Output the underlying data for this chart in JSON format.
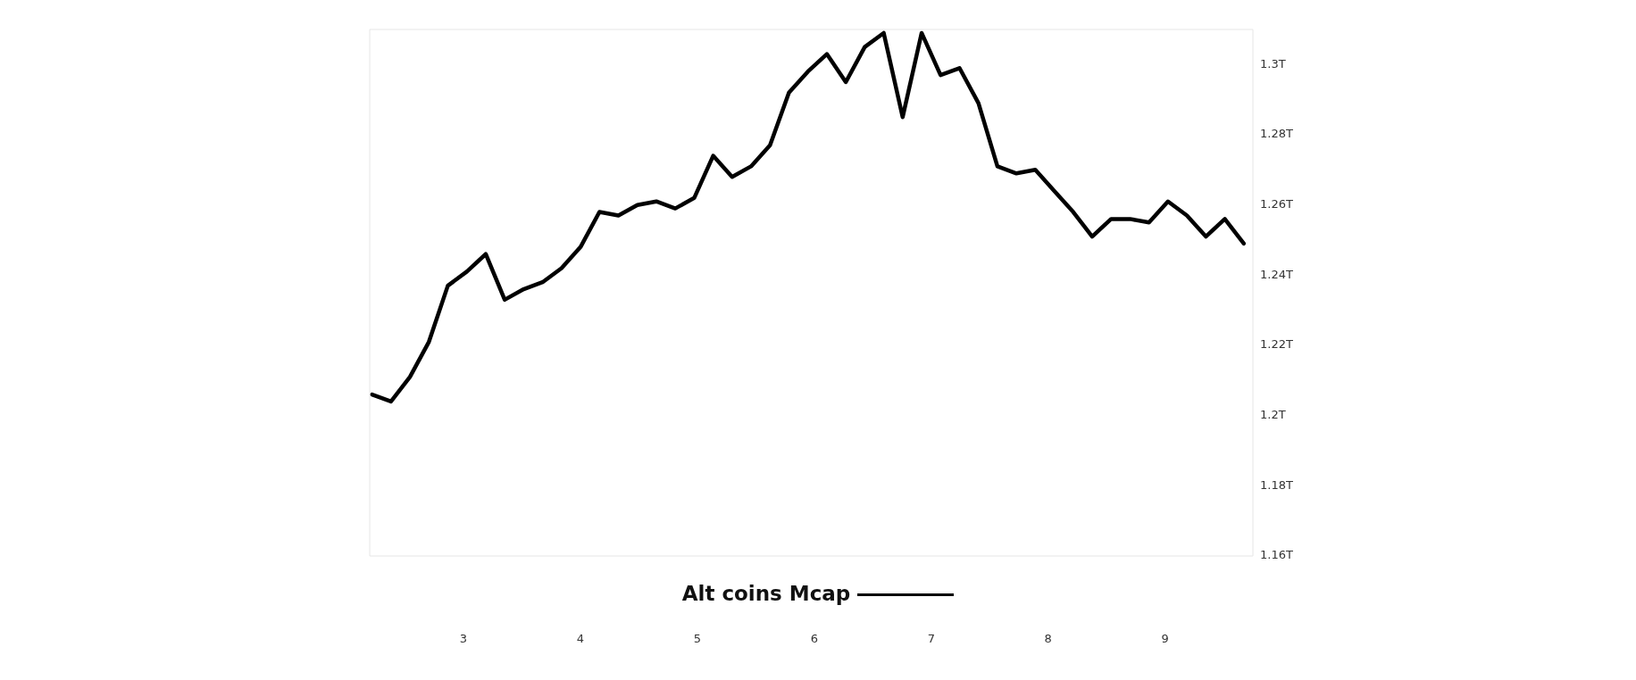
{
  "chart_data": {
    "type": "line",
    "legend": "bottom",
    "grid": false,
    "marker": "none",
    "line_style": "solid",
    "xlim": [
      2.2,
      9.75
    ],
    "xticks": [
      3,
      4,
      5,
      6,
      7,
      8,
      9
    ],
    "ylim": [
      1.16,
      1.31
    ],
    "yticks": [
      {
        "value": 1.16,
        "label": "1.16T"
      },
      {
        "value": 1.18,
        "label": "1.18T"
      },
      {
        "value": 1.2,
        "label": "1.2T"
      },
      {
        "value": 1.22,
        "label": "1.22T"
      },
      {
        "value": 1.24,
        "label": "1.24T"
      },
      {
        "value": 1.26,
        "label": "1.26T"
      },
      {
        "value": 1.28,
        "label": "1.28T"
      },
      {
        "value": 1.3,
        "label": "1.3T"
      }
    ],
    "x": [
      2.22,
      2.382,
      2.544,
      2.706,
      2.868,
      3.03,
      3.192,
      3.354,
      3.516,
      3.678,
      3.84,
      4.002,
      4.164,
      4.326,
      4.488,
      4.65,
      4.812,
      4.974,
      5.136,
      5.298,
      5.46,
      5.622,
      5.784,
      5.946,
      6.108,
      6.27,
      6.432,
      6.594,
      6.756,
      6.918,
      7.08,
      7.242,
      7.404,
      7.566,
      7.728,
      7.89,
      8.052,
      8.214,
      8.376,
      8.538,
      8.7,
      8.862,
      9.024,
      9.186,
      9.348,
      9.51,
      9.672
    ],
    "series": [
      {
        "name": "Alt coins Mcap",
        "color": "#000000",
        "values": [
          1.206,
          1.204,
          1.211,
          1.221,
          1.237,
          1.241,
          1.246,
          1.233,
          1.236,
          1.238,
          1.242,
          1.248,
          1.258,
          1.257,
          1.26,
          1.261,
          1.259,
          1.262,
          1.274,
          1.268,
          1.271,
          1.277,
          1.292,
          1.298,
          1.303,
          1.295,
          1.305,
          1.309,
          1.285,
          1.309,
          1.297,
          1.299,
          1.289,
          1.271,
          1.269,
          1.27,
          1.264,
          1.258,
          1.251,
          1.256,
          1.256,
          1.255,
          1.261,
          1.257,
          1.251,
          1.256,
          1.249
        ]
      }
    ]
  }
}
